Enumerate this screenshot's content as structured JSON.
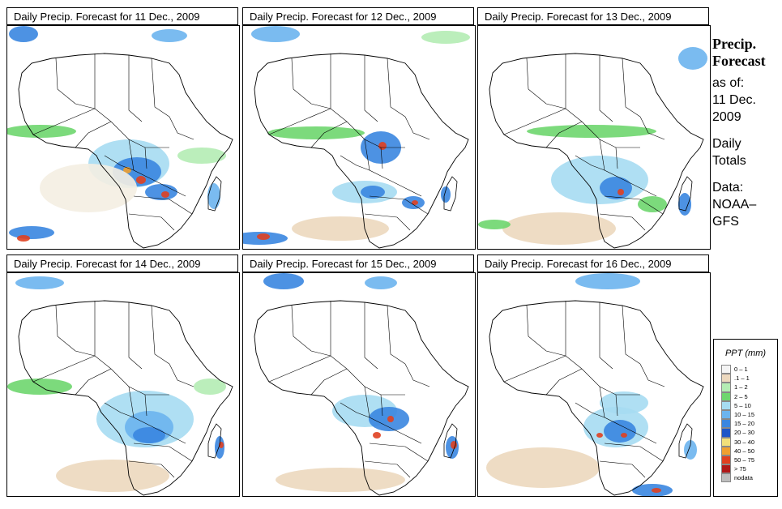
{
  "panels": [
    {
      "title": "Daily Precip. Forecast for  11 Dec., 2009"
    },
    {
      "title": "Daily Precip. Forecast for  12 Dec., 2009"
    },
    {
      "title": "Daily Precip. Forecast for  13 Dec., 2009"
    },
    {
      "title": "Daily Precip. Forecast for  14 Dec., 2009"
    },
    {
      "title": "Daily Precip. Forecast for  15 Dec., 2009"
    },
    {
      "title": "Daily Precip. Forecast for  16 Dec., 2009"
    }
  ],
  "sidebar": {
    "heading1": "Precip.",
    "heading2": "Forecast",
    "asof": "as of:",
    "date1": "11 Dec.",
    "date2": "2009",
    "daily": "Daily",
    "totals": "Totals",
    "data": "Data:",
    "src1": "NOAA–",
    "src2": "GFS"
  },
  "legend": {
    "title": "PPT (mm)",
    "items": [
      {
        "label": "0 – 1",
        "color": "#f4f4f4"
      },
      {
        "label": ".1 – 1",
        "color": "#ecd8be"
      },
      {
        "label": "1 – 2",
        "color": "#b4ecb4"
      },
      {
        "label": "2 – 5",
        "color": "#6ed66e"
      },
      {
        "label": "5 – 10",
        "color": "#a6dcf2"
      },
      {
        "label": "10 – 15",
        "color": "#6cb4ee"
      },
      {
        "label": "15 – 20",
        "color": "#3a86e0"
      },
      {
        "label": "20 – 30",
        "color": "#1c56c8"
      },
      {
        "label": "30 – 40",
        "color": "#f2e07a"
      },
      {
        "label": "40 – 50",
        "color": "#f0a030"
      },
      {
        "label": "50 – 75",
        "color": "#e04020"
      },
      {
        "label": "> 75",
        "color": "#b01818"
      },
      {
        "label": "nodata",
        "color": "#bebebe"
      }
    ]
  }
}
